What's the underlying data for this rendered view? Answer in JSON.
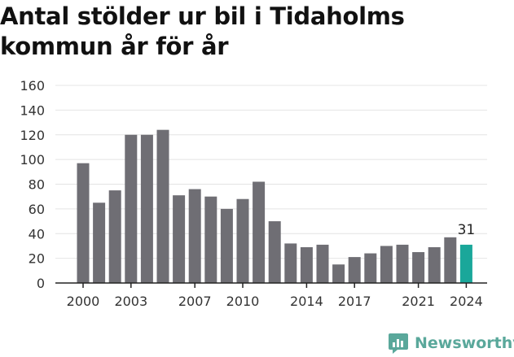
{
  "chart_data": {
    "type": "bar",
    "title": "Antal stölder ur bil i Tidaholms kommun år för år",
    "x": [
      2000,
      2001,
      2002,
      2003,
      2004,
      2005,
      2006,
      2007,
      2008,
      2009,
      2010,
      2011,
      2012,
      2013,
      2014,
      2015,
      2016,
      2017,
      2018,
      2019,
      2020,
      2021,
      2022,
      2023,
      2024
    ],
    "values": [
      97,
      65,
      75,
      120,
      120,
      124,
      71,
      76,
      70,
      60,
      68,
      82,
      50,
      32,
      29,
      31,
      15,
      21,
      24,
      30,
      31,
      25,
      29,
      37,
      31
    ],
    "x_tick_labels": [
      "2000",
      "2003",
      "2007",
      "2010",
      "2014",
      "2017",
      "2021",
      "2024"
    ],
    "y_ticks": [
      "0",
      "20",
      "40",
      "60",
      "80",
      "100",
      "120",
      "140",
      "160"
    ],
    "ylim": [
      0,
      160
    ],
    "highlight": {
      "x": 2024,
      "label": "31",
      "color": "#1aa79a"
    },
    "bar_color": "#6f6e74",
    "grid": true,
    "xlabel": "",
    "ylabel": ""
  },
  "brand": {
    "name": "Newsworthy",
    "icon": "newsworthy-logo-icon",
    "color": "#5aa89b"
  }
}
